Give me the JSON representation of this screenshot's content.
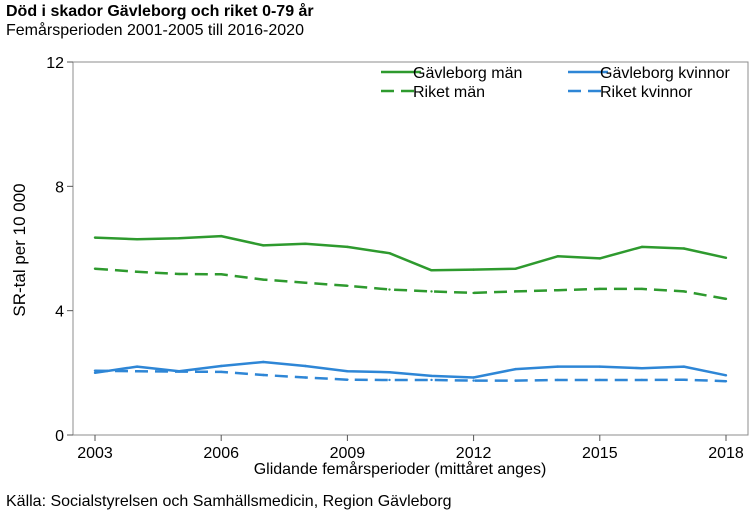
{
  "header": {
    "title": "Död i skador Gävleborg och riket 0-79 år",
    "subtitle": "Femårsperioden 2001-2005 till 2016-2020"
  },
  "footer": {
    "source": "Källa: Socialstyrelsen och Samhällsmedicin, Region Gävleborg"
  },
  "chart_data": {
    "type": "line",
    "title": "Död i skador Gävleborg och riket 0-79 år",
    "subtitle": "Femårsperioden 2001-2005 till 2016-2020",
    "xlabel": "Glidande femårsperioder (mittåret anges)",
    "ylabel": "SR-tal per 10 000",
    "xlim": [
      2003,
      2018
    ],
    "ylim": [
      0,
      12
    ],
    "x_ticks": [
      "2003",
      "2006",
      "2009",
      "2012",
      "2015",
      "2018"
    ],
    "y_ticks": [
      "0",
      "4",
      "8",
      "12"
    ],
    "grid": false,
    "legend_position": "top-right",
    "x": [
      2003,
      2004,
      2005,
      2006,
      2007,
      2008,
      2009,
      2010,
      2011,
      2012,
      2013,
      2014,
      2015,
      2016,
      2017,
      2018
    ],
    "series": [
      {
        "name": "Gävleborg män",
        "color": "#2e9a2e",
        "dash": "solid",
        "values": [
          6.35,
          6.3,
          6.33,
          6.4,
          6.1,
          6.15,
          6.05,
          5.85,
          5.3,
          5.32,
          5.35,
          5.75,
          5.68,
          6.05,
          6.0,
          5.7
        ]
      },
      {
        "name": "Gävleborg kvinnor",
        "color": "#2e86d6",
        "dash": "solid",
        "values": [
          2.0,
          2.2,
          2.05,
          2.22,
          2.35,
          2.22,
          2.05,
          2.02,
          1.9,
          1.85,
          2.12,
          2.2,
          2.2,
          2.15,
          2.2,
          1.92
        ]
      },
      {
        "name": "Riket män",
        "color": "#2e9a2e",
        "dash": "dashed",
        "values": [
          5.35,
          5.25,
          5.18,
          5.17,
          5.0,
          4.9,
          4.8,
          4.68,
          4.62,
          4.57,
          4.62,
          4.66,
          4.7,
          4.7,
          4.62,
          4.38
        ]
      },
      {
        "name": "Riket kvinnor",
        "color": "#2e86d6",
        "dash": "dashed",
        "values": [
          2.07,
          2.05,
          2.04,
          2.03,
          1.93,
          1.85,
          1.78,
          1.77,
          1.77,
          1.75,
          1.75,
          1.77,
          1.77,
          1.77,
          1.78,
          1.73
        ]
      }
    ]
  }
}
